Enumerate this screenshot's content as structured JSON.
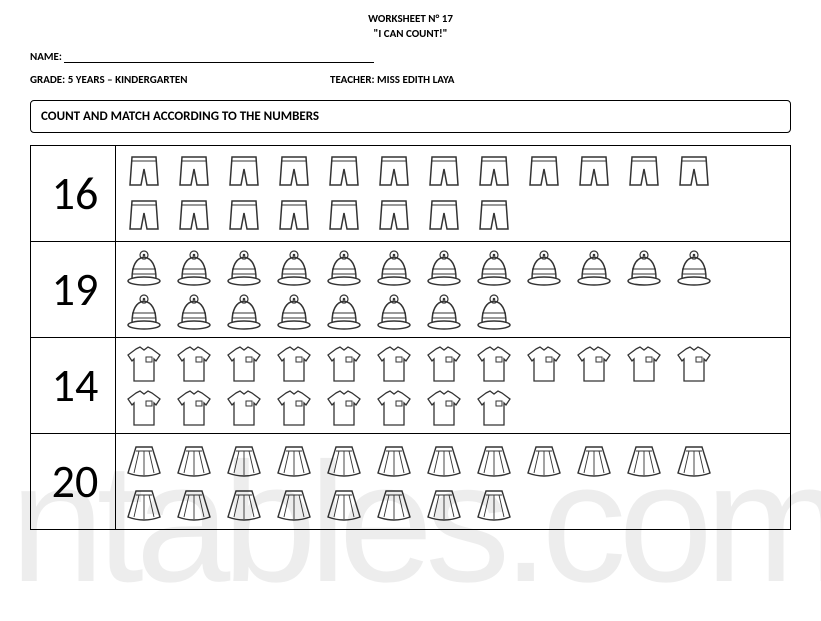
{
  "header": {
    "worksheet": "WORKSHEET N° 17",
    "subtitle": "\"I CAN COUNT!\""
  },
  "name_label": "NAME:",
  "grade_label": "GRADE: 5 YEARS – KINDERGARTEN",
  "teacher_label": "TEACHER: MISS EDITH LAYA",
  "instruction": "COUNT AND MATCH ACCORDING TO THE NUMBERS",
  "rows": [
    {
      "number": "16",
      "item": "shorts",
      "row1": 12,
      "row2": 8,
      "color": "#333"
    },
    {
      "number": "19",
      "item": "hat",
      "row1": 12,
      "row2": 8,
      "color": "#333"
    },
    {
      "number": "14",
      "item": "shirt",
      "row1": 12,
      "row2": 8,
      "color": "#333"
    },
    {
      "number": "20",
      "item": "skirt",
      "row1": 12,
      "row2": 8,
      "color": "#333"
    }
  ],
  "icon_size": {
    "w": 44,
    "h": 42
  },
  "watermark": "ntables.com"
}
